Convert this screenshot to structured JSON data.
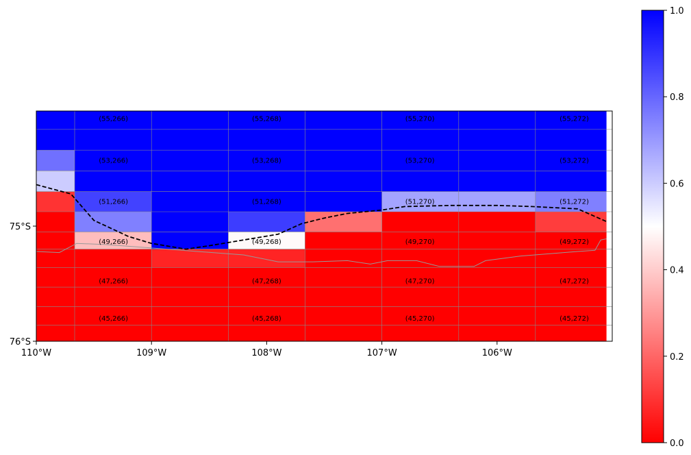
{
  "chart_data": {
    "type": "heatmap",
    "title": "",
    "xlabel": "",
    "ylabel": "",
    "x_range": [
      -110,
      -105
    ],
    "y_range": [
      -76,
      -74
    ],
    "x_ticks": [
      {
        "value": -110,
        "label": "110°W"
      },
      {
        "value": -109,
        "label": "109°W"
      },
      {
        "value": -108,
        "label": "108°W"
      },
      {
        "value": -107,
        "label": "107°W"
      },
      {
        "value": -106,
        "label": "106°W"
      }
    ],
    "y_ticks": [
      {
        "value": -75,
        "label": "75°S"
      },
      {
        "value": -76,
        "label": "76°S"
      }
    ],
    "colorbar": {
      "min": 0,
      "max": 1,
      "colors": [
        "#ff0000",
        "#ffffff",
        "#0000ff"
      ],
      "ticks": [
        {
          "value": 0,
          "label": "0.0"
        },
        {
          "value": 0.2,
          "label": "0.2"
        },
        {
          "value": 0.4,
          "label": "0.4"
        },
        {
          "value": 0.6,
          "label": "0.6"
        },
        {
          "value": 0.8,
          "label": "0.8"
        },
        {
          "value": 1.0,
          "label": "1.0"
        }
      ]
    },
    "column_edges": [
      -110,
      -109.667,
      -109,
      -108.333,
      -107.667,
      -107,
      -106.333,
      -105.667,
      -105.05
    ],
    "row_edges": [
      -74.0,
      -74.16,
      -74.34,
      -74.52,
      -74.7,
      -74.875,
      -75.05,
      -75.2,
      -75.36,
      -75.53,
      -75.7,
      -75.86,
      -76.0
    ],
    "values": [
      [
        1,
        1,
        1,
        1,
        1,
        1,
        1,
        1
      ],
      [
        1,
        1,
        1,
        1,
        1,
        1,
        1,
        1
      ],
      [
        0.78,
        1,
        1,
        1,
        1,
        1,
        1,
        1
      ],
      [
        0.6,
        1,
        1,
        1,
        1,
        1,
        1,
        1
      ],
      [
        0.1,
        0.87,
        1,
        1,
        1,
        0.68,
        0.68,
        0.75
      ],
      [
        0,
        0.75,
        1,
        0.88,
        0.22,
        0,
        0,
        0.12
      ],
      [
        0,
        0.37,
        1,
        0.49,
        0,
        0,
        0,
        0
      ],
      [
        0,
        0,
        0.07,
        0.07,
        0,
        0,
        0,
        0
      ],
      [
        0,
        0,
        0,
        0,
        0,
        0,
        0,
        0
      ],
      [
        0,
        0,
        0,
        0,
        0,
        0,
        0,
        0
      ],
      [
        0,
        0,
        0,
        0,
        0,
        0,
        0,
        0
      ],
      [
        0,
        0,
        0,
        0,
        0,
        0,
        0,
        0
      ]
    ],
    "cell_labels": [
      {
        "text": "(55,266)",
        "x": -109.33,
        "y": -74.065
      },
      {
        "text": "(55,268)",
        "x": -108.0,
        "y": -74.065
      },
      {
        "text": "(55,270)",
        "x": -106.67,
        "y": -74.065
      },
      {
        "text": "(55,272)",
        "x": -105.33,
        "y": -74.065
      },
      {
        "text": "(53,266)",
        "x": -109.33,
        "y": -74.43
      },
      {
        "text": "(53,268)",
        "x": -108.0,
        "y": -74.43
      },
      {
        "text": "(53,270)",
        "x": -106.67,
        "y": -74.43
      },
      {
        "text": "(53,272)",
        "x": -105.33,
        "y": -74.43
      },
      {
        "text": "(51,266)",
        "x": -109.33,
        "y": -74.785
      },
      {
        "text": "(51,268)",
        "x": -108.0,
        "y": -74.785
      },
      {
        "text": "(51,270)",
        "x": -106.67,
        "y": -74.785
      },
      {
        "text": "(51,272)",
        "x": -105.33,
        "y": -74.785
      },
      {
        "text": "(49,266)",
        "x": -109.33,
        "y": -75.135
      },
      {
        "text": "(49,268)",
        "x": -108.0,
        "y": -75.135
      },
      {
        "text": "(49,270)",
        "x": -106.67,
        "y": -75.135
      },
      {
        "text": "(49,272)",
        "x": -105.33,
        "y": -75.135
      },
      {
        "text": "(47,266)",
        "x": -109.33,
        "y": -75.475
      },
      {
        "text": "(47,268)",
        "x": -108.0,
        "y": -75.475
      },
      {
        "text": "(47,270)",
        "x": -106.67,
        "y": -75.475
      },
      {
        "text": "(47,272)",
        "x": -105.33,
        "y": -75.475
      },
      {
        "text": "(45,266)",
        "x": -109.33,
        "y": -75.8
      },
      {
        "text": "(45,268)",
        "x": -108.0,
        "y": -75.8
      },
      {
        "text": "(45,270)",
        "x": -106.67,
        "y": -75.8
      },
      {
        "text": "(45,272)",
        "x": -105.33,
        "y": -75.8
      }
    ],
    "contour_line": {
      "style": "dashed",
      "color": "#000000",
      "points": [
        [
          -110,
          -74.64
        ],
        [
          -109.7,
          -74.72
        ],
        [
          -109.5,
          -74.95
        ],
        [
          -109.2,
          -75.09
        ],
        [
          -109.0,
          -75.15
        ],
        [
          -108.7,
          -75.2
        ],
        [
          -108.5,
          -75.17
        ],
        [
          -108.2,
          -75.12
        ],
        [
          -107.9,
          -75.07
        ],
        [
          -107.7,
          -74.98
        ],
        [
          -107.5,
          -74.93
        ],
        [
          -107.3,
          -74.89
        ],
        [
          -107.0,
          -74.86
        ],
        [
          -106.8,
          -74.83
        ],
        [
          -106.4,
          -74.82
        ],
        [
          -106.0,
          -74.82
        ],
        [
          -105.7,
          -74.83
        ],
        [
          -105.3,
          -74.85
        ],
        [
          -105.05,
          -74.96
        ]
      ]
    },
    "coastline": {
      "color": "#999999",
      "points": [
        [
          -110,
          -75.22
        ],
        [
          -109.8,
          -75.23
        ],
        [
          -109.65,
          -75.15
        ],
        [
          -109.4,
          -75.16
        ],
        [
          -109.0,
          -75.19
        ],
        [
          -108.6,
          -75.22
        ],
        [
          -108.2,
          -75.25
        ],
        [
          -107.9,
          -75.31
        ],
        [
          -107.6,
          -75.31
        ],
        [
          -107.3,
          -75.3
        ],
        [
          -107.1,
          -75.33
        ],
        [
          -106.95,
          -75.3
        ],
        [
          -106.7,
          -75.3
        ],
        [
          -106.5,
          -75.35
        ],
        [
          -106.2,
          -75.35
        ],
        [
          -106.1,
          -75.3
        ],
        [
          -105.8,
          -75.26
        ],
        [
          -105.3,
          -75.22
        ],
        [
          -105.15,
          -75.21
        ],
        [
          -105.1,
          -75.12
        ],
        [
          -105.05,
          -75.11
        ]
      ]
    }
  }
}
